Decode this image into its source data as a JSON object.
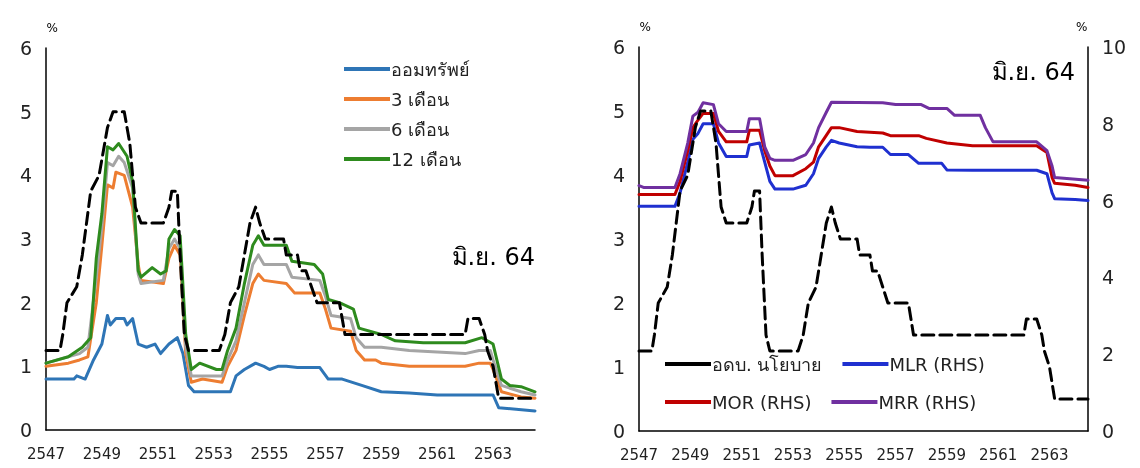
{
  "chart_data": [
    {
      "type": "line",
      "ylabel": "%",
      "annotations": [
        "มิ.ย. 64"
      ],
      "xlim": [
        2547,
        2564.5
      ],
      "xticks": [
        2547,
        2549,
        2551,
        2553,
        2555,
        2557,
        2559,
        2561,
        2563
      ],
      "ylim": [
        0,
        6
      ],
      "yticks": [
        0,
        1,
        2,
        3,
        4,
        5,
        6
      ],
      "grid": false,
      "legend": "top right",
      "marker": "none",
      "series": [
        {
          "color": "#000000",
          "line_style": "dashed",
          "x": [
            2547.0,
            2547.5,
            2547.6,
            2547.75,
            2548.1,
            2548.2,
            2548.3,
            2548.45,
            2548.6,
            2548.9,
            2549.0,
            2549.2,
            2549.4,
            2549.8,
            2550.0,
            2550.2,
            2550.4,
            2551.2,
            2551.4,
            2551.5,
            2551.7,
            2551.8,
            2551.95,
            2552.1,
            2553.2,
            2553.4,
            2553.6,
            2553.9,
            2554.1,
            2554.3,
            2554.5,
            2554.65,
            2554.85,
            2555.5,
            2555.6,
            2556.0,
            2556.1,
            2556.3,
            2556.5,
            2556.7,
            2557.5,
            2557.7,
            2562.0,
            2562.1,
            2562.5,
            2562.7,
            2562.8,
            2563.0,
            2563.2,
            2564.5
          ],
          "values": [
            1.25,
            1.25,
            1.5,
            2.0,
            2.25,
            2.5,
            2.75,
            3.25,
            3.75,
            4.0,
            4.25,
            4.75,
            5.0,
            5.0,
            4.5,
            3.5,
            3.25,
            3.25,
            3.5,
            3.75,
            3.75,
            2.75,
            1.5,
            1.25,
            1.25,
            1.5,
            2.0,
            2.25,
            2.75,
            3.25,
            3.5,
            3.25,
            3.0,
            3.0,
            2.75,
            2.75,
            2.5,
            2.5,
            2.25,
            2.0,
            2.0,
            1.5,
            1.5,
            1.75,
            1.75,
            1.5,
            1.25,
            1.0,
            0.5,
            0.5
          ]
        },
        {
          "name": "ออมทรัพย์",
          "color": "#2e75b6",
          "x": [
            2547,
            2548,
            2548.1,
            2548.4,
            2548.7,
            2549.0,
            2549.2,
            2549.3,
            2549.5,
            2549.8,
            2549.9,
            2550.1,
            2550.3,
            2550.6,
            2550.9,
            2551.1,
            2551.4,
            2551.7,
            2551.9,
            2552.1,
            2552.3,
            2553.0,
            2553.6,
            2553.8,
            2554.1,
            2554.5,
            2554.8,
            2555.0,
            2555.3,
            2555.6,
            2556.0,
            2556.8,
            2557.1,
            2557.6,
            2558.3,
            2559.0,
            2560.0,
            2561.0,
            2563.0,
            2563.2,
            2564.5
          ],
          "values": [
            0.8,
            0.8,
            0.85,
            0.8,
            1.1,
            1.35,
            1.8,
            1.65,
            1.75,
            1.75,
            1.65,
            1.75,
            1.35,
            1.3,
            1.35,
            1.2,
            1.35,
            1.45,
            1.2,
            0.7,
            0.6,
            0.6,
            0.6,
            0.85,
            0.95,
            1.05,
            1.0,
            0.95,
            1.0,
            1.0,
            0.98,
            0.98,
            0.8,
            0.8,
            0.7,
            0.6,
            0.58,
            0.55,
            0.55,
            0.35,
            0.3
          ]
        },
        {
          "name": "3 เดือน",
          "color": "#ed7d31",
          "x": [
            2547,
            2547.8,
            2548.2,
            2548.5,
            2548.8,
            2549.0,
            2549.2,
            2549.4,
            2549.5,
            2549.8,
            2550.1,
            2550.3,
            2550.4,
            2551.2,
            2551.4,
            2551.6,
            2551.8,
            2552.0,
            2552.2,
            2552.6,
            2553.3,
            2553.5,
            2553.8,
            2554.1,
            2554.4,
            2554.6,
            2554.8,
            2555.6,
            2555.9,
            2556.8,
            2557.0,
            2557.2,
            2557.9,
            2558.1,
            2558.4,
            2558.8,
            2559.0,
            2560.0,
            2562.0,
            2562.5,
            2562.9,
            2563.0,
            2563.3,
            2564.0,
            2564.5
          ],
          "values": [
            1.0,
            1.05,
            1.1,
            1.15,
            2.0,
            2.9,
            3.85,
            3.8,
            4.05,
            4.0,
            3.5,
            2.6,
            2.35,
            2.3,
            2.7,
            2.9,
            2.75,
            1.2,
            0.75,
            0.8,
            0.75,
            1.0,
            1.25,
            1.8,
            2.3,
            2.45,
            2.35,
            2.3,
            2.15,
            2.15,
            1.9,
            1.6,
            1.55,
            1.25,
            1.1,
            1.1,
            1.05,
            1.0,
            1.0,
            1.05,
            1.05,
            0.95,
            0.6,
            0.52,
            0.5
          ]
        },
        {
          "name": "6 เดือน",
          "color": "#a5a5a5",
          "x": [
            2547,
            2548.2,
            2548.5,
            2548.8,
            2549.0,
            2549.2,
            2549.4,
            2549.6,
            2549.8,
            2550.1,
            2550.3,
            2550.4,
            2551.2,
            2551.4,
            2551.6,
            2551.8,
            2552.0,
            2552.2,
            2553.3,
            2553.5,
            2553.8,
            2554.1,
            2554.4,
            2554.6,
            2554.8,
            2555.6,
            2555.8,
            2556.8,
            2557.0,
            2557.2,
            2557.9,
            2558.1,
            2558.4,
            2559.0,
            2560.0,
            2562.0,
            2562.5,
            2562.9,
            2563.0,
            2563.3,
            2564.0,
            2564.5
          ],
          "values": [
            1.05,
            1.2,
            1.3,
            2.4,
            3.2,
            4.2,
            4.15,
            4.3,
            4.2,
            3.8,
            2.45,
            2.3,
            2.35,
            2.85,
            3.0,
            2.85,
            1.3,
            0.85,
            0.85,
            1.1,
            1.4,
            2.0,
            2.6,
            2.75,
            2.6,
            2.6,
            2.4,
            2.35,
            2.1,
            1.8,
            1.75,
            1.45,
            1.3,
            1.3,
            1.25,
            1.2,
            1.25,
            1.25,
            1.1,
            0.7,
            0.6,
            0.55
          ]
        },
        {
          "name": "12 เดือน",
          "color": "#2e8b1e",
          "x": [
            2547,
            2547.8,
            2548.3,
            2548.6,
            2548.8,
            2549.0,
            2549.2,
            2549.4,
            2549.6,
            2549.9,
            2550.1,
            2550.3,
            2550.4,
            2550.8,
            2551.1,
            2551.3,
            2551.4,
            2551.6,
            2551.8,
            2552.0,
            2552.2,
            2552.5,
            2553.1,
            2553.3,
            2553.5,
            2553.8,
            2554.1,
            2554.4,
            2554.6,
            2554.8,
            2555.6,
            2555.8,
            2556.6,
            2556.9,
            2557.1,
            2557.5,
            2558.0,
            2558.2,
            2559.0,
            2559.5,
            2560.5,
            2562.0,
            2562.6,
            2563.0,
            2563.3,
            2563.6,
            2564.0,
            2564.5
          ],
          "values": [
            1.05,
            1.15,
            1.3,
            1.45,
            2.7,
            3.4,
            4.45,
            4.4,
            4.5,
            4.3,
            3.9,
            2.5,
            2.4,
            2.55,
            2.45,
            2.5,
            3.0,
            3.15,
            3.05,
            1.5,
            0.95,
            1.05,
            0.95,
            0.95,
            1.25,
            1.6,
            2.3,
            2.9,
            3.05,
            2.9,
            2.9,
            2.65,
            2.6,
            2.45,
            2.05,
            2.0,
            1.9,
            1.6,
            1.5,
            1.4,
            1.37,
            1.37,
            1.45,
            1.35,
            0.8,
            0.7,
            0.68,
            0.6
          ]
        }
      ]
    },
    {
      "type": "line",
      "ylabel": "%",
      "y2label": "%",
      "annotations": [
        "มิ.ย. 64"
      ],
      "xlim": [
        2547,
        2564.5
      ],
      "xticks": [
        2547,
        2549,
        2551,
        2553,
        2555,
        2557,
        2559,
        2561,
        2563
      ],
      "ylim": [
        0,
        6
      ],
      "yticks": [
        0,
        1,
        2,
        3,
        4,
        5,
        6
      ],
      "y2lim": [
        0,
        10
      ],
      "y2ticks": [
        0,
        2,
        4,
        6,
        8,
        10
      ],
      "grid": false,
      "legend": "bottom",
      "marker": "none",
      "series": [
        {
          "name": "อดบ. นโยบาย",
          "color": "#000000",
          "line_style": "dashed",
          "x": [
            2547.0,
            2547.5,
            2547.6,
            2547.75,
            2548.1,
            2548.2,
            2548.3,
            2548.45,
            2548.6,
            2548.9,
            2549.0,
            2549.2,
            2549.4,
            2549.8,
            2550.0,
            2550.2,
            2550.4,
            2551.2,
            2551.4,
            2551.5,
            2551.7,
            2551.8,
            2551.95,
            2552.1,
            2553.2,
            2553.4,
            2553.6,
            2553.9,
            2554.1,
            2554.3,
            2554.5,
            2554.65,
            2554.85,
            2555.5,
            2555.6,
            2556.0,
            2556.1,
            2556.3,
            2556.5,
            2556.7,
            2557.5,
            2557.7,
            2562.0,
            2562.1,
            2562.5,
            2562.7,
            2562.8,
            2563.0,
            2563.2,
            2564.5
          ],
          "values": [
            1.25,
            1.25,
            1.5,
            2.0,
            2.25,
            2.5,
            2.75,
            3.25,
            3.75,
            4.0,
            4.25,
            4.75,
            5.0,
            5.0,
            4.5,
            3.5,
            3.25,
            3.25,
            3.5,
            3.75,
            3.75,
            2.75,
            1.5,
            1.25,
            1.25,
            1.5,
            2.0,
            2.25,
            2.75,
            3.25,
            3.5,
            3.25,
            3.0,
            3.0,
            2.75,
            2.75,
            2.5,
            2.5,
            2.25,
            2.0,
            2.0,
            1.5,
            1.5,
            1.75,
            1.75,
            1.5,
            1.25,
            1.0,
            0.5,
            0.5
          ]
        },
        {
          "name": "MLR (RHS)",
          "color": "#1f30d0",
          "axis": "y2",
          "x": [
            2547,
            2548.4,
            2548.6,
            2548.9,
            2549.1,
            2549.3,
            2549.5,
            2549.9,
            2550.1,
            2550.4,
            2551.2,
            2551.3,
            2551.7,
            2551.9,
            2552.1,
            2552.3,
            2553.0,
            2553.5,
            2553.8,
            2554.0,
            2554.3,
            2554.5,
            2554.8,
            2555.5,
            2556.0,
            2556.5,
            2556.8,
            2557.5,
            2557.9,
            2558.8,
            2559.0,
            2560.0,
            2562.5,
            2562.9,
            2563.1,
            2563.2,
            2564.0,
            2564.5
          ],
          "values": [
            5.85,
            5.85,
            6.2,
            7.0,
            7.6,
            7.75,
            8.0,
            8.0,
            7.5,
            7.15,
            7.15,
            7.45,
            7.5,
            7.0,
            6.5,
            6.3,
            6.3,
            6.4,
            6.7,
            7.1,
            7.4,
            7.57,
            7.5,
            7.4,
            7.39,
            7.39,
            7.2,
            7.2,
            6.97,
            6.97,
            6.8,
            6.79,
            6.79,
            6.7,
            6.2,
            6.05,
            6.03,
            6.0
          ]
        },
        {
          "name": "MOR (RHS)",
          "color": "#c00000",
          "axis": "y2",
          "x": [
            2547,
            2548.4,
            2548.6,
            2548.9,
            2549.1,
            2549.3,
            2549.5,
            2549.9,
            2550.1,
            2550.4,
            2551.2,
            2551.3,
            2551.7,
            2551.9,
            2552.1,
            2552.3,
            2553.0,
            2553.5,
            2553.8,
            2554.0,
            2554.3,
            2554.5,
            2554.8,
            2555.5,
            2556.5,
            2556.8,
            2557.9,
            2558.2,
            2559.0,
            2560.0,
            2562.5,
            2562.9,
            2563.1,
            2563.2,
            2564.0,
            2564.5
          ],
          "values": [
            6.16,
            6.16,
            6.5,
            7.3,
            7.9,
            8.1,
            8.27,
            8.27,
            7.8,
            7.53,
            7.53,
            7.83,
            7.83,
            7.3,
            6.9,
            6.65,
            6.65,
            6.83,
            7.0,
            7.4,
            7.7,
            7.9,
            7.9,
            7.8,
            7.76,
            7.69,
            7.69,
            7.62,
            7.5,
            7.43,
            7.43,
            7.25,
            6.6,
            6.45,
            6.4,
            6.34
          ]
        },
        {
          "name": "MRR (RHS)",
          "color": "#7030a0",
          "axis": "y2",
          "x": [
            2547,
            2547.2,
            2548.4,
            2548.6,
            2548.9,
            2549.1,
            2549.3,
            2549.5,
            2549.9,
            2550.1,
            2550.4,
            2551.2,
            2551.3,
            2551.7,
            2551.9,
            2552.1,
            2552.3,
            2553.0,
            2553.5,
            2553.8,
            2554.0,
            2554.3,
            2554.5,
            2556.5,
            2557.0,
            2558.0,
            2558.3,
            2559.0,
            2559.3,
            2560.3,
            2560.5,
            2560.8,
            2562.5,
            2562.9,
            2563.1,
            2563.2,
            2564.5
          ],
          "values": [
            6.39,
            6.34,
            6.34,
            6.7,
            7.5,
            8.2,
            8.3,
            8.55,
            8.5,
            8.0,
            7.8,
            7.8,
            8.13,
            8.13,
            7.4,
            7.1,
            7.05,
            7.05,
            7.2,
            7.5,
            7.9,
            8.3,
            8.56,
            8.55,
            8.5,
            8.5,
            8.4,
            8.4,
            8.22,
            8.22,
            7.9,
            7.53,
            7.53,
            7.3,
            6.9,
            6.6,
            6.53
          ]
        }
      ]
    }
  ]
}
